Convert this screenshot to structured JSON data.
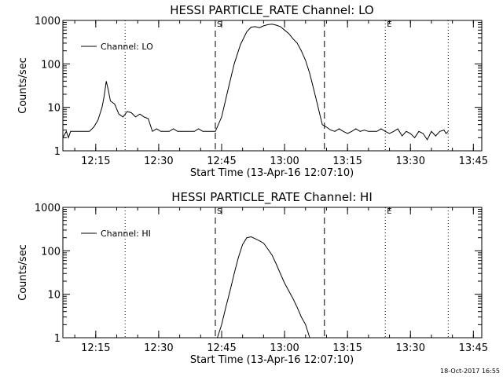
{
  "footer": {
    "timestamp": "18-Oct-2017 16:55"
  },
  "chart_data": [
    {
      "type": "line",
      "title": "HESSI PARTICLE_RATE Channel: LO",
      "xlabel": "Start Time (13-Apr-16 12:07:10)",
      "ylabel": "Counts/sec",
      "yscale": "log",
      "ylim": [
        1,
        1000
      ],
      "xlim": [
        "12:07:10",
        "13:47:00"
      ],
      "x_ticks": [
        "12:15",
        "12:30",
        "12:45",
        "13:00",
        "13:15",
        "13:30",
        "13:45"
      ],
      "y_ticks": [
        "1",
        "10",
        "100",
        "1000"
      ],
      "legend": {
        "position": "top-left",
        "label": "Channel: LO"
      },
      "markers": [
        {
          "time": "12:22:00",
          "style": "dotted",
          "label": ""
        },
        {
          "time": "12:43:30",
          "style": "dashed",
          "label": "S"
        },
        {
          "time": "13:09:30",
          "style": "dashed",
          "label": ""
        },
        {
          "time": "13:24:00",
          "style": "dotted",
          "label": "E"
        },
        {
          "time": "13:39:00",
          "style": "dotted",
          "label": ""
        }
      ],
      "series": [
        {
          "name": "Channel: LO",
          "x": [
            "12:07:10",
            "12:08:00",
            "12:08:30",
            "12:09:00",
            "12:10:00",
            "12:12:00",
            "12:13:30",
            "12:14:30",
            "12:15:30",
            "12:16:30",
            "12:17:00",
            "12:17:30",
            "12:18:00",
            "12:18:30",
            "12:19:30",
            "12:20:30",
            "12:21:30",
            "12:22:30",
            "12:23:30",
            "12:24:30",
            "12:25:30",
            "12:26:30",
            "12:27:30",
            "12:28:30",
            "12:29:30",
            "12:30:30",
            "12:31:30",
            "12:32:30",
            "12:33:30",
            "12:34:30",
            "12:35:30",
            "12:36:30",
            "12:37:30",
            "12:38:30",
            "12:39:30",
            "12:40:30",
            "12:41:30",
            "12:42:30",
            "12:43:30",
            "12:45:00",
            "12:46:30",
            "12:48:00",
            "12:49:30",
            "12:51:00",
            "12:52:00",
            "12:53:00",
            "12:54:00",
            "12:55:00",
            "12:56:00",
            "12:57:00",
            "12:58:00",
            "12:59:00",
            "13:00:00",
            "13:01:00",
            "13:02:00",
            "13:03:00",
            "13:04:00",
            "13:05:00",
            "13:06:00",
            "13:07:00",
            "13:08:00",
            "13:09:00",
            "13:10:00",
            "13:11:00",
            "13:12:00",
            "13:13:00",
            "13:14:00",
            "13:15:00",
            "13:16:00",
            "13:17:00",
            "13:18:00",
            "13:19:00",
            "13:20:00",
            "13:21:00",
            "13:22:00",
            "13:23:00",
            "13:24:00",
            "13:25:00",
            "13:26:00",
            "13:27:00",
            "13:28:00",
            "13:29:00",
            "13:30:00",
            "13:31:00",
            "13:32:00",
            "13:33:00",
            "13:34:00",
            "13:35:00",
            "13:36:00",
            "13:37:00",
            "13:38:00",
            "13:38:30",
            "13:39:00"
          ],
          "y": [
            2,
            2.8,
            2,
            2.8,
            2.8,
            2.8,
            2.8,
            3.5,
            5,
            10,
            18,
            40,
            25,
            14,
            12,
            7,
            6,
            8,
            7.5,
            6,
            7,
            6,
            5.5,
            2.8,
            3.2,
            2.8,
            2.8,
            2.8,
            3.2,
            2.8,
            2.8,
            2.8,
            2.8,
            2.8,
            3.2,
            2.8,
            2.8,
            2.8,
            2.8,
            6,
            25,
            100,
            280,
            550,
            700,
            720,
            680,
            750,
            800,
            820,
            780,
            720,
            600,
            500,
            380,
            300,
            200,
            120,
            60,
            25,
            10,
            4,
            3.5,
            3,
            2.8,
            3.2,
            2.8,
            2.5,
            2.8,
            3.2,
            2.8,
            3,
            2.8,
            2.8,
            2.8,
            3.2,
            2.8,
            2.5,
            2.8,
            3.2,
            2.2,
            2.8,
            2.5,
            2,
            2.8,
            2.5,
            1.8,
            2.8,
            2.2,
            2.8,
            3,
            2.5,
            2.8
          ]
        }
      ]
    },
    {
      "type": "line",
      "title": "HESSI PARTICLE_RATE Channel: HI",
      "xlabel": "Start Time (13-Apr-16 12:07:10)",
      "ylabel": "Counts/sec",
      "yscale": "log",
      "ylim": [
        1,
        1000
      ],
      "xlim": [
        "12:07:10",
        "13:47:00"
      ],
      "x_ticks": [
        "12:15",
        "12:30",
        "12:45",
        "13:00",
        "13:15",
        "13:30",
        "13:45"
      ],
      "y_ticks": [
        "1",
        "10",
        "100",
        "1000"
      ],
      "legend": {
        "position": "top-left",
        "label": "Channel: HI"
      },
      "markers": [
        {
          "time": "12:22:00",
          "style": "dotted",
          "label": ""
        },
        {
          "time": "12:43:30",
          "style": "dashed",
          "label": "S"
        },
        {
          "time": "13:09:30",
          "style": "dashed",
          "label": ""
        },
        {
          "time": "13:24:00",
          "style": "dotted",
          "label": "E"
        },
        {
          "time": "13:39:00",
          "style": "dotted",
          "label": ""
        }
      ],
      "series": [
        {
          "name": "Channel: HI",
          "x": [
            "12:44:00",
            "12:45:00",
            "12:46:00",
            "12:47:00",
            "12:48:00",
            "12:49:00",
            "12:50:00",
            "12:51:00",
            "12:52:00",
            "12:53:00",
            "12:54:00",
            "12:55:00",
            "12:56:00",
            "12:57:00",
            "12:58:00",
            "12:59:00",
            "13:00:00",
            "13:01:00",
            "13:02:00",
            "13:03:00",
            "13:04:00",
            "13:05:00",
            "13:06:00"
          ],
          "y": [
            1,
            2,
            5,
            12,
            30,
            70,
            140,
            200,
            210,
            190,
            170,
            150,
            110,
            80,
            50,
            30,
            18,
            12,
            8,
            5,
            3,
            2,
            1
          ]
        }
      ]
    }
  ]
}
